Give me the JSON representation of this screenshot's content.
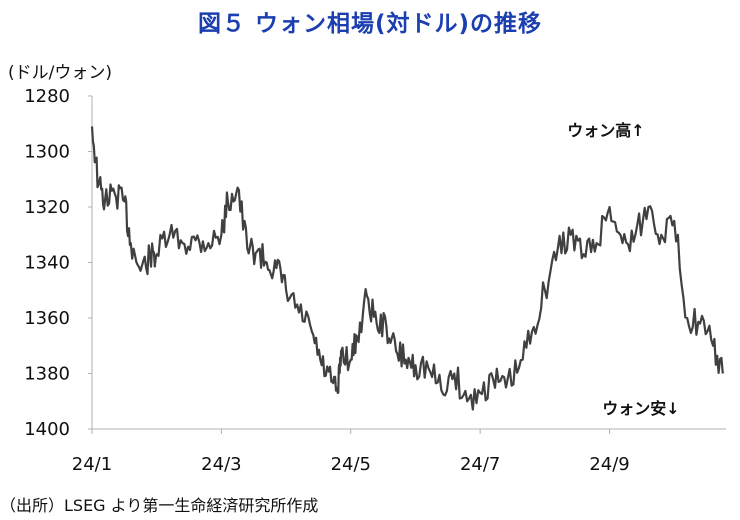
{
  "title": "図５ ウォン相場(対ドル)の推移",
  "unit_label": "(ドル/ウォン)",
  "source": "（出所）LSEG より第一生命経済研究所作成",
  "chart_data": {
    "type": "line",
    "y_axis": {
      "min": 1280,
      "max": 1400,
      "inverted": true,
      "ticks": [
        "1280",
        "1300",
        "1320",
        "1340",
        "1360",
        "1380",
        "1400"
      ]
    },
    "x_axis": {
      "ticks": [
        "24/1",
        "24/3",
        "24/5",
        "24/7",
        "24/9"
      ],
      "tick_month_index": [
        0,
        2,
        4,
        6,
        8
      ],
      "range_months": [
        0,
        9.8
      ]
    },
    "grid": false,
    "annotations": [
      "ウォン高↑",
      "ウォン安↓"
    ],
    "series": [
      {
        "color": "#404040",
        "x_month": [
          0,
          0.1,
          0.2,
          0.35,
          0.5,
          0.6,
          0.75,
          0.9,
          1.0,
          1.2,
          1.4,
          1.6,
          1.8,
          2.0,
          2.1,
          2.25,
          2.4,
          2.55,
          2.7,
          2.85,
          3.0,
          3.2,
          3.4,
          3.55,
          3.7,
          3.8,
          3.85,
          4.0,
          4.1,
          4.25,
          4.4,
          4.55,
          4.7,
          4.85,
          5.0,
          5.2,
          5.4,
          5.6,
          5.8,
          6.0,
          6.2,
          6.4,
          6.6,
          6.8,
          7.0,
          7.2,
          7.4,
          7.6,
          7.8,
          8.0,
          8.2,
          8.4,
          8.6,
          8.8,
          9.0,
          9.2,
          9.4,
          9.6,
          9.75
        ],
        "y": [
          1291,
          1312,
          1318,
          1315,
          1318,
          1333,
          1343,
          1338,
          1337,
          1330,
          1333,
          1332,
          1333,
          1330,
          1318,
          1313,
          1335,
          1336,
          1340,
          1342,
          1350,
          1358,
          1365,
          1377,
          1383,
          1387,
          1372,
          1375,
          1367,
          1352,
          1362,
          1363,
          1372,
          1375,
          1377,
          1378,
          1386,
          1380,
          1390,
          1387,
          1382,
          1385,
          1378,
          1365,
          1350,
          1335,
          1330,
          1337,
          1333,
          1320,
          1333,
          1330,
          1320,
          1330,
          1325,
          1360,
          1362,
          1370,
          1380
        ]
      }
    ]
  }
}
